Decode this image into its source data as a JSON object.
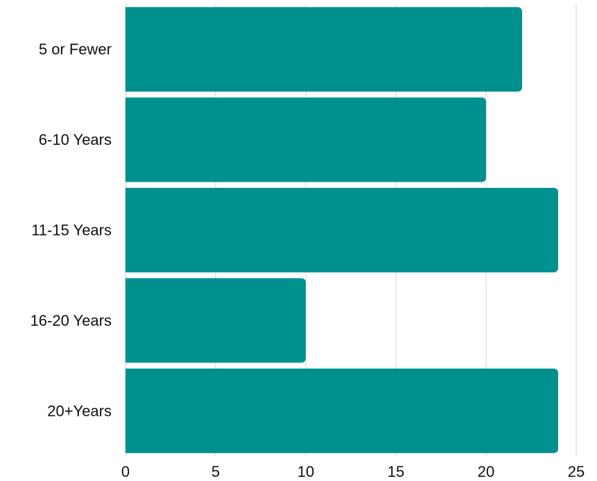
{
  "chart_data": {
    "type": "bar",
    "orientation": "horizontal",
    "categories": [
      "5 or Fewer",
      "6-10 Years",
      "11-15 Years",
      "16-20 Years",
      "20+Years"
    ],
    "values": [
      22,
      20,
      24,
      10,
      24
    ],
    "title": "",
    "xlabel": "",
    "ylabel": "",
    "xlim": [
      0,
      25
    ],
    "xticks": [
      0,
      5,
      10,
      15,
      20,
      25
    ],
    "grid": "vertical",
    "legend": "none",
    "bar_color": "#00918F"
  }
}
